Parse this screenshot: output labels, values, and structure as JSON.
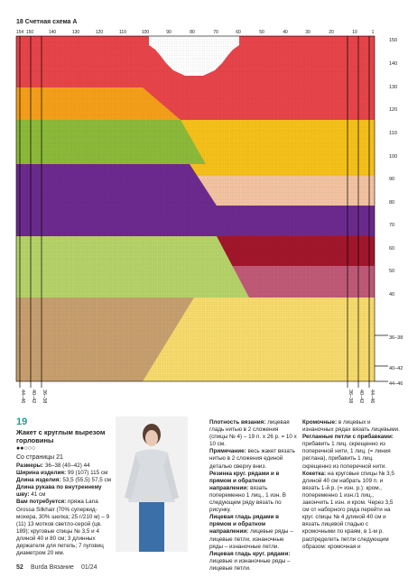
{
  "header": {
    "title": "18 Счетная схема А"
  },
  "chart": {
    "top_labels": [
      "154",
      "150",
      "140",
      "130",
      "120",
      "110",
      "100",
      "90",
      "80",
      "70",
      "60",
      "50",
      "40",
      "30",
      "20",
      "10",
      "1"
    ],
    "right_labels": [
      "150",
      "140",
      "130",
      "120",
      "110",
      "100",
      "90",
      "80",
      "70",
      "60",
      "50",
      "40",
      "36–38",
      "40–42",
      "44–46"
    ],
    "bottom_left_labels": [
      "44–46",
      "40–42",
      "36–38"
    ],
    "bottom_right_labels": [
      "36–38",
      "40–42",
      "44–46"
    ]
  },
  "item": {
    "number": "19",
    "title": "Жакет с круглым вырезом горловины",
    "difficulty": "●●○○○",
    "source": "Со страницы 21",
    "specs": [
      {
        "label": "Размеры:",
        "text": "36–38 (40–42) 44"
      },
      {
        "label": "Ширина изделия:",
        "text": "99 (107) 115 см"
      },
      {
        "label": "Длина изделия:",
        "text": "53,5 (55,5) 57,5 см"
      },
      {
        "label": "Длина рукава по внутреннему шву:",
        "text": "41 см"
      },
      {
        "label": "Вам потребуется:",
        "text": "пряжа Lana Grossa Silkhair (70% суперкид-мохера, 30% шелка; 25 г/210 м) – 9 (11) 13 мотков светло-серой (цв. 189); круговые спицы № 3,5 и 4 длиной 40 и 80 см; 3 длинных держателя для петель; 7 пуговиц диаметром 20 мм."
      }
    ]
  },
  "middle_column": [
    {
      "label": "Плотность вязания:",
      "text": "лицевая гладь нитью в 2 сложения (спицы № 4) – 19 п. х 26 р. = 10 х 10 см."
    },
    {
      "label": "Примечание:",
      "text": "весь жакет вязать нитью в 2 сложения единой деталью сверху вниз."
    },
    {
      "label": "Резинка круг. рядами и в прямом и обратном направлении:",
      "text": "вязать попеременно 1 лиц., 1 изн. В следующем ряду вязать по рисунку."
    },
    {
      "label": "Лицевая гладь рядами в прямом и обратном направлении:",
      "text": "лицевые ряды – лицевые петли, изнаночные ряды – изнаночные петли."
    },
    {
      "label": "Лицевая гладь круг. рядами:",
      "text": "лицевые и изнаночные ряды – лицевые петли."
    }
  ],
  "right_column": [
    {
      "label": "Кромочные:",
      "text": "в лицевых и изнаночных рядах вязать лицевыми."
    },
    {
      "label": "Регланные петли с прибавками:",
      "text": "прибавить 1 лиц. скрещенно из поперечной нити, 1 лиц. (= линия реглана), прибавить 1 лиц. скрещенно из поперечной нити."
    },
    {
      "label": "Кокетка:",
      "text": "на круговые спицы № 3,5 длиной 40 см набрать 109 п. и вязать 1-й р. (= изн. р.): кром., попеременно 1 изн./1 лиц., закончить 1 изн. и кром. Через 3,5 см от наборного ряда перейти на круг. спицы № 4 длиной 40 см и вязать лицевой гладью с кромочными по краям, в 1-м р. распределить петли следующим образом: кромочная и"
    }
  ],
  "footer": {
    "page": "52",
    "magazine": "Burda Вязание",
    "issue": "01/24"
  }
}
